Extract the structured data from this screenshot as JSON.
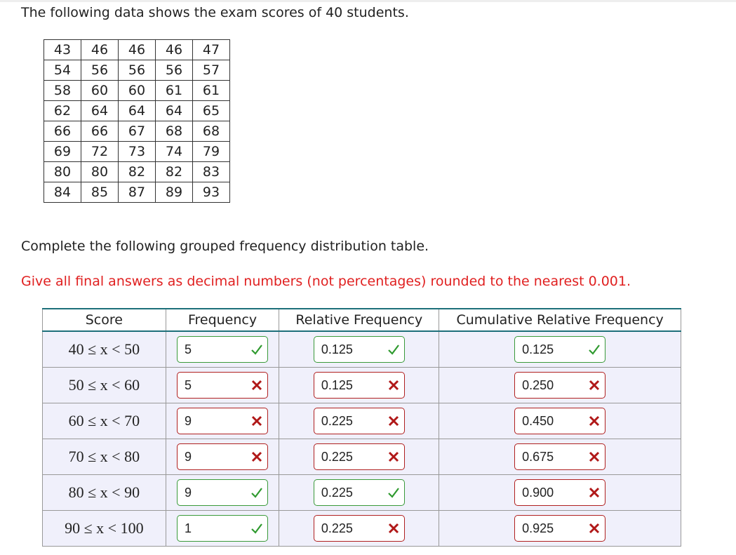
{
  "intro": "The following data shows the exam scores of 40 students.",
  "scores": [
    [
      43,
      46,
      46,
      46,
      47
    ],
    [
      54,
      56,
      56,
      56,
      57
    ],
    [
      58,
      60,
      60,
      61,
      61
    ],
    [
      62,
      64,
      64,
      64,
      65
    ],
    [
      66,
      66,
      67,
      68,
      68
    ],
    [
      69,
      72,
      73,
      74,
      79
    ],
    [
      80,
      80,
      82,
      82,
      83
    ],
    [
      84,
      85,
      87,
      89,
      93
    ]
  ],
  "prompt": "Complete the following grouped frequency distribution table.",
  "instruction": "Give all final answers as decimal numbers (not percentages) rounded to the nearest 0.001.",
  "table": {
    "headers": [
      "Score",
      "Frequency",
      "Relative Frequency",
      "Cumulative Relative Frequency"
    ],
    "rows": [
      {
        "score": "40 ≤ x < 50",
        "answers": [
          "5",
          "0.125",
          "0.125"
        ],
        "status": [
          "correct",
          "correct",
          "correct"
        ]
      },
      {
        "score": "50 ≤ x < 60",
        "answers": [
          "5",
          "0.125",
          "0.250"
        ],
        "status": [
          "incorrect",
          "incorrect",
          "incorrect"
        ]
      },
      {
        "score": "60 ≤ x < 70",
        "answers": [
          "9",
          "0.225",
          "0.450"
        ],
        "status": [
          "incorrect",
          "incorrect",
          "incorrect"
        ]
      },
      {
        "score": "70 ≤ x < 80",
        "answers": [
          "9",
          "0.225",
          "0.675"
        ],
        "status": [
          "incorrect",
          "incorrect",
          "incorrect"
        ]
      },
      {
        "score": "80 ≤ x < 90",
        "answers": [
          "9",
          "0.225",
          "0.900"
        ],
        "status": [
          "correct",
          "correct",
          "incorrect"
        ]
      },
      {
        "score": "90 ≤ x < 100",
        "answers": [
          "1",
          "0.225",
          "0.925"
        ],
        "status": [
          "correct",
          "incorrect",
          "incorrect"
        ]
      }
    ]
  }
}
